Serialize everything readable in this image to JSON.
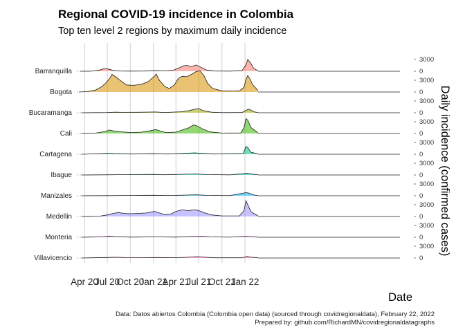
{
  "chart_data": {
    "type": "area",
    "title": "Regional COVID-19 incidence in Colombia",
    "subtitle": "Top ten level 2 regions by maximum daily incidence",
    "xlabel": "Date",
    "ylabel": "Daily incidence (confirmed cases)",
    "caption_line1": "Data: Datos abiertos Colombia (Colombia open data) (sourced through covidregionaldata), February 22, 2022",
    "caption_line2": "Prepared by: github.com/RichardMN/covidregionaldatagraphs",
    "x_range": [
      "2020-03-01",
      "2022-02-22"
    ],
    "x_ticks": [
      {
        "date": "2020-04-01",
        "label": "Apr 20"
      },
      {
        "date": "2020-07-01",
        "label": "Jul 20"
      },
      {
        "date": "2020-10-01",
        "label": "Oct 20"
      },
      {
        "date": "2021-01-01",
        "label": "Jan 21"
      },
      {
        "date": "2021-04-01",
        "label": "Apr 21"
      },
      {
        "date": "2021-07-01",
        "label": "Jul 21"
      },
      {
        "date": "2021-10-01",
        "label": "Oct 21"
      },
      {
        "date": "2022-01-01",
        "label": "Jan 22"
      }
    ],
    "y_tick_values": [
      0,
      3000
    ],
    "y_tick_labels": [
      "0",
      "3000"
    ],
    "grid": true,
    "series": [
      {
        "name": "Barranquilla",
        "color": "#F8766D",
        "points": [
          [
            "2020-03-15",
            0
          ],
          [
            "2020-05-01",
            20
          ],
          [
            "2020-06-01",
            300
          ],
          [
            "2020-06-20",
            700
          ],
          [
            "2020-07-10",
            500
          ],
          [
            "2020-07-25",
            200
          ],
          [
            "2020-08-20",
            60
          ],
          [
            "2020-10-01",
            30
          ],
          [
            "2020-12-01",
            60
          ],
          [
            "2021-01-10",
            150
          ],
          [
            "2021-02-10",
            80
          ],
          [
            "2021-03-20",
            250
          ],
          [
            "2021-04-15",
            900
          ],
          [
            "2021-05-01",
            1400
          ],
          [
            "2021-05-15",
            1500
          ],
          [
            "2021-06-01",
            1200
          ],
          [
            "2021-06-20",
            1600
          ],
          [
            "2021-07-10",
            1000
          ],
          [
            "2021-08-01",
            300
          ],
          [
            "2021-09-01",
            60
          ],
          [
            "2021-11-01",
            40
          ],
          [
            "2021-12-20",
            150
          ],
          [
            "2022-01-05",
            1700
          ],
          [
            "2022-01-12",
            3000
          ],
          [
            "2022-01-22",
            2200
          ],
          [
            "2022-02-05",
            700
          ],
          [
            "2022-02-22",
            150
          ]
        ]
      },
      {
        "name": "Bogota",
        "color": "#D89000",
        "points": [
          [
            "2020-03-10",
            0
          ],
          [
            "2020-04-15",
            100
          ],
          [
            "2020-05-15",
            500
          ],
          [
            "2020-06-10",
            1400
          ],
          [
            "2020-06-25",
            2300
          ],
          [
            "2020-07-10",
            3400
          ],
          [
            "2020-07-20",
            4500
          ],
          [
            "2020-08-05",
            3800
          ],
          [
            "2020-08-25",
            2800
          ],
          [
            "2020-09-15",
            1800
          ],
          [
            "2020-10-15",
            1700
          ],
          [
            "2020-11-15",
            2000
          ],
          [
            "2020-12-10",
            2600
          ],
          [
            "2021-01-05",
            4000
          ],
          [
            "2021-01-12",
            4600
          ],
          [
            "2021-01-25",
            3000
          ],
          [
            "2021-02-15",
            1400
          ],
          [
            "2021-03-05",
            900
          ],
          [
            "2021-03-25",
            1800
          ],
          [
            "2021-04-10",
            3400
          ],
          [
            "2021-04-25",
            4000
          ],
          [
            "2021-05-15",
            3900
          ],
          [
            "2021-06-05",
            4600
          ],
          [
            "2021-06-20",
            5200
          ],
          [
            "2021-07-05",
            5400
          ],
          [
            "2021-07-20",
            4300
          ],
          [
            "2021-08-05",
            2200
          ],
          [
            "2021-08-25",
            900
          ],
          [
            "2021-10-01",
            300
          ],
          [
            "2021-11-15",
            250
          ],
          [
            "2021-12-10",
            300
          ],
          [
            "2021-12-28",
            1200
          ],
          [
            "2022-01-05",
            3200
          ],
          [
            "2022-01-12",
            4200
          ],
          [
            "2022-01-20",
            3400
          ],
          [
            "2022-02-01",
            1800
          ],
          [
            "2022-02-22",
            400
          ]
        ]
      },
      {
        "name": "Bucaramanga",
        "color": "#A3A500",
        "points": [
          [
            "2020-03-20",
            0
          ],
          [
            "2020-07-01",
            60
          ],
          [
            "2020-08-01",
            150
          ],
          [
            "2020-09-01",
            100
          ],
          [
            "2020-11-01",
            120
          ],
          [
            "2021-01-10",
            200
          ],
          [
            "2021-02-15",
            60
          ],
          [
            "2021-04-20",
            250
          ],
          [
            "2021-05-20",
            500
          ],
          [
            "2021-06-15",
            900
          ],
          [
            "2021-07-01",
            1100
          ],
          [
            "2021-07-15",
            600
          ],
          [
            "2021-08-20",
            150
          ],
          [
            "2021-10-01",
            40
          ],
          [
            "2021-12-20",
            60
          ],
          [
            "2022-01-10",
            800
          ],
          [
            "2022-01-18",
            900
          ],
          [
            "2022-02-05",
            250
          ],
          [
            "2022-02-22",
            50
          ]
        ]
      },
      {
        "name": "Cali",
        "color": "#39B600",
        "points": [
          [
            "2020-03-20",
            0
          ],
          [
            "2020-05-15",
            100
          ],
          [
            "2020-06-20",
            450
          ],
          [
            "2020-07-10",
            900
          ],
          [
            "2020-07-25",
            650
          ],
          [
            "2020-08-20",
            450
          ],
          [
            "2020-10-01",
            250
          ],
          [
            "2020-11-15",
            350
          ],
          [
            "2020-12-15",
            650
          ],
          [
            "2021-01-10",
            1000
          ],
          [
            "2021-01-25",
            700
          ],
          [
            "2021-02-20",
            250
          ],
          [
            "2021-04-01",
            350
          ],
          [
            "2021-05-05",
            1100
          ],
          [
            "2021-05-20",
            1400
          ],
          [
            "2021-06-10",
            2200
          ],
          [
            "2021-06-25",
            1900
          ],
          [
            "2021-07-15",
            1200
          ],
          [
            "2021-08-15",
            400
          ],
          [
            "2021-10-01",
            100
          ],
          [
            "2021-12-15",
            150
          ],
          [
            "2021-12-28",
            1500
          ],
          [
            "2022-01-05",
            3800
          ],
          [
            "2022-01-12",
            3400
          ],
          [
            "2022-01-25",
            1500
          ],
          [
            "2022-02-22",
            200
          ]
        ]
      },
      {
        "name": "Cartagena",
        "color": "#00BF7D",
        "points": [
          [
            "2020-03-20",
            0
          ],
          [
            "2020-06-01",
            120
          ],
          [
            "2020-07-01",
            250
          ],
          [
            "2020-08-01",
            150
          ],
          [
            "2020-10-01",
            60
          ],
          [
            "2021-01-01",
            120
          ],
          [
            "2021-03-01",
            60
          ],
          [
            "2021-05-01",
            250
          ],
          [
            "2021-06-15",
            350
          ],
          [
            "2021-07-10",
            250
          ],
          [
            "2021-09-01",
            60
          ],
          [
            "2021-12-25",
            200
          ],
          [
            "2022-01-05",
            2000
          ],
          [
            "2022-01-12",
            1700
          ],
          [
            "2022-01-25",
            500
          ],
          [
            "2022-02-22",
            100
          ]
        ]
      },
      {
        "name": "Ibague",
        "color": "#00BFC4",
        "points": [
          [
            "2020-03-20",
            0
          ],
          [
            "2020-07-15",
            60
          ],
          [
            "2020-09-01",
            80
          ],
          [
            "2021-01-05",
            150
          ],
          [
            "2021-02-15",
            60
          ],
          [
            "2021-05-01",
            200
          ],
          [
            "2021-06-20",
            260
          ],
          [
            "2021-08-01",
            100
          ],
          [
            "2021-11-01",
            30
          ],
          [
            "2022-01-10",
            400
          ],
          [
            "2022-01-20",
            300
          ],
          [
            "2022-02-22",
            60
          ]
        ]
      },
      {
        "name": "Manizales",
        "color": "#00B0F6",
        "points": [
          [
            "2020-03-20",
            0
          ],
          [
            "2020-07-15",
            40
          ],
          [
            "2020-10-01",
            80
          ],
          [
            "2021-01-05",
            120
          ],
          [
            "2021-03-01",
            60
          ],
          [
            "2021-05-15",
            180
          ],
          [
            "2021-06-20",
            250
          ],
          [
            "2021-08-01",
            100
          ],
          [
            "2021-11-01",
            30
          ],
          [
            "2022-01-05",
            800
          ],
          [
            "2022-01-15",
            700
          ],
          [
            "2022-02-05",
            200
          ],
          [
            "2022-02-22",
            50
          ]
        ]
      },
      {
        "name": "Medellin",
        "color": "#9590FF",
        "points": [
          [
            "2020-03-20",
            0
          ],
          [
            "2020-06-01",
            80
          ],
          [
            "2020-07-01",
            400
          ],
          [
            "2020-07-25",
            800
          ],
          [
            "2020-08-15",
            1000
          ],
          [
            "2020-09-05",
            800
          ],
          [
            "2020-10-01",
            700
          ],
          [
            "2020-11-01",
            800
          ],
          [
            "2020-12-05",
            900
          ],
          [
            "2021-01-05",
            1300
          ],
          [
            "2021-01-15",
            1100
          ],
          [
            "2021-02-15",
            500
          ],
          [
            "2021-03-10",
            600
          ],
          [
            "2021-04-01",
            1300
          ],
          [
            "2021-04-25",
            1700
          ],
          [
            "2021-05-20",
            1500
          ],
          [
            "2021-06-15",
            1700
          ],
          [
            "2021-07-01",
            1500
          ],
          [
            "2021-07-20",
            1000
          ],
          [
            "2021-08-20",
            400
          ],
          [
            "2021-10-01",
            150
          ],
          [
            "2021-12-10",
            150
          ],
          [
            "2021-12-28",
            1500
          ],
          [
            "2022-01-05",
            4000
          ],
          [
            "2022-01-12",
            3000
          ],
          [
            "2022-01-25",
            1200
          ],
          [
            "2022-02-22",
            150
          ]
        ]
      },
      {
        "name": "Monteria",
        "color": "#E76BF3",
        "points": [
          [
            "2020-03-20",
            0
          ],
          [
            "2020-06-15",
            100
          ],
          [
            "2020-07-10",
            300
          ],
          [
            "2020-08-01",
            150
          ],
          [
            "2020-10-01",
            40
          ],
          [
            "2021-01-10",
            80
          ],
          [
            "2021-04-01",
            40
          ],
          [
            "2021-06-15",
            200
          ],
          [
            "2021-07-15",
            250
          ],
          [
            "2021-08-15",
            80
          ],
          [
            "2021-11-01",
            20
          ],
          [
            "2022-01-10",
            250
          ],
          [
            "2022-01-20",
            150
          ],
          [
            "2022-02-22",
            40
          ]
        ]
      },
      {
        "name": "Villavicencio",
        "color": "#FF62BC",
        "points": [
          [
            "2020-03-20",
            0
          ],
          [
            "2020-07-01",
            120
          ],
          [
            "2020-08-01",
            200
          ],
          [
            "2020-09-15",
            100
          ],
          [
            "2020-12-01",
            80
          ],
          [
            "2021-01-10",
            120
          ],
          [
            "2021-04-01",
            80
          ],
          [
            "2021-05-20",
            200
          ],
          [
            "2021-06-25",
            350
          ],
          [
            "2021-07-15",
            250
          ],
          [
            "2021-09-01",
            60
          ],
          [
            "2021-12-20",
            60
          ],
          [
            "2022-01-10",
            400
          ],
          [
            "2022-01-20",
            250
          ],
          [
            "2022-02-22",
            60
          ]
        ]
      }
    ]
  }
}
